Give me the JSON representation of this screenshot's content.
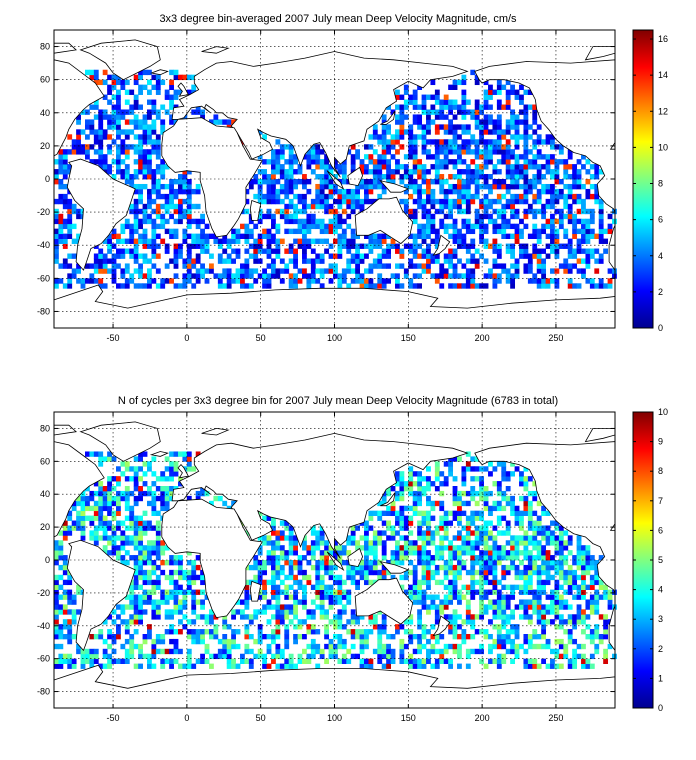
{
  "chart_data": [
    {
      "type": "heatmap",
      "title": "3x3 degree bin-averaged 2007 July mean Deep Velocity Magnitude, cm/s",
      "xlabel": "",
      "ylabel": "",
      "xlim": [
        -90,
        290
      ],
      "ylim": [
        -90,
        90
      ],
      "xticks": [
        -50,
        0,
        50,
        100,
        150,
        200,
        250
      ],
      "yticks": [
        -80,
        -60,
        -40,
        -20,
        0,
        20,
        40,
        60,
        80
      ],
      "grid": true,
      "bin_size_deg": 3,
      "colorbar": {
        "min": 0,
        "max": 16.5,
        "ticks": [
          0,
          2,
          4,
          6,
          8,
          10,
          12,
          14,
          16
        ],
        "colormap": "jet"
      },
      "seed": 7,
      "value_distribution": {
        "base_mean": 3.5,
        "spread": 2.5,
        "hotspot_value": 15,
        "hotspot_rate": 0.08
      }
    },
    {
      "type": "heatmap",
      "title": "N of cycles per 3x3 degree bin for 2007 July mean Deep Velocity Magnitude (6783 in total)",
      "xlabel": "",
      "ylabel": "",
      "xlim": [
        -90,
        290
      ],
      "ylim": [
        -90,
        90
      ],
      "xticks": [
        -50,
        0,
        50,
        100,
        150,
        200,
        250
      ],
      "yticks": [
        -80,
        -60,
        -40,
        -20,
        0,
        20,
        40,
        60,
        80
      ],
      "grid": true,
      "bin_size_deg": 3,
      "total_cycles": 6783,
      "colorbar": {
        "min": 0,
        "max": 10,
        "ticks": [
          0,
          1,
          2,
          3,
          4,
          5,
          6,
          7,
          8,
          9,
          10
        ],
        "colormap": "jet"
      },
      "seed": 19,
      "value_distribution": {
        "base_mean": 3.2,
        "spread": 2.2,
        "hotspot_value": 9.5,
        "hotspot_rate": 0.04
      }
    }
  ]
}
